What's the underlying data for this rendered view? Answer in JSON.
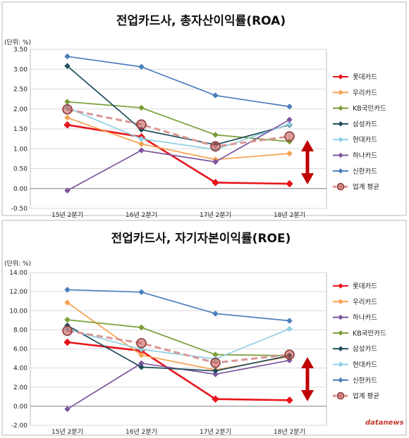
{
  "chart_data": [
    {
      "type": "line",
      "title": "전업카드사, 총자산이익률(ROA)",
      "unit_label": "(단위: %)",
      "categories": [
        "15년 2분기",
        "16년 2분기",
        "17년 2분기",
        "18년 2분기"
      ],
      "ylim": [
        -0.5,
        3.5
      ],
      "yticks": [
        "3.50",
        "3.00",
        "2.50",
        "2.00",
        "1.50",
        "1.00",
        "0.50",
        "0.00",
        "-0.50"
      ],
      "ytick_values": [
        3.5,
        3.0,
        2.5,
        2.0,
        1.5,
        1.0,
        0.5,
        0.0,
        -0.5
      ],
      "grid": true,
      "legend_position": "right",
      "series": [
        {
          "name": "롯데카드",
          "color": "#e8141b",
          "marker": "diamond",
          "values": [
            1.6,
            1.3,
            0.15,
            0.12
          ]
        },
        {
          "name": "우리카드",
          "color": "#f7a150",
          "marker": "diamond",
          "values": [
            1.78,
            1.12,
            0.73,
            0.88
          ]
        },
        {
          "name": "KB국민카드",
          "color": "#7a9e36",
          "marker": "diamond",
          "values": [
            2.18,
            2.03,
            1.35,
            1.18
          ]
        },
        {
          "name": "삼성카드",
          "color": "#1e4d5b",
          "marker": "diamond",
          "values": [
            3.08,
            1.48,
            1.1,
            1.6
          ]
        },
        {
          "name": "현대카드",
          "color": "#8fd0e3",
          "marker": "diamond",
          "values": [
            2.03,
            1.25,
            0.98,
            1.62
          ]
        },
        {
          "name": "하나카드",
          "color": "#7d569f",
          "marker": "diamond",
          "values": [
            -0.05,
            0.96,
            0.67,
            1.73
          ]
        },
        {
          "name": "신한카드",
          "color": "#4a7ebb",
          "marker": "diamond",
          "values": [
            3.32,
            3.06,
            2.34,
            2.06
          ]
        },
        {
          "name": "업계 평균",
          "color": "#d99694",
          "marker": "circle",
          "dashed": true,
          "values": [
            1.99,
            1.61,
            1.06,
            1.31
          ]
        }
      ]
    },
    {
      "type": "line",
      "title": "전업카드사, 자기자본이익률(ROE)",
      "unit_label": "(단위: %)",
      "categories": [
        "15년 2분기",
        "16년 2분기",
        "17년 2분기",
        "18년 2분기"
      ],
      "ylim": [
        -2.0,
        14.0
      ],
      "yticks": [
        "14.00",
        "12.00",
        "10.00",
        "8.00",
        "6.00",
        "4.00",
        "2.00",
        "0.00",
        "-2.00"
      ],
      "ytick_values": [
        14,
        12,
        10,
        8,
        6,
        4,
        2,
        0,
        -2
      ],
      "grid": true,
      "legend_position": "right",
      "series": [
        {
          "name": "롯데카드",
          "color": "#e8141b",
          "marker": "diamond",
          "values": [
            6.7,
            5.8,
            0.75,
            0.63
          ]
        },
        {
          "name": "우리카드",
          "color": "#f7a150",
          "marker": "diamond",
          "values": [
            10.85,
            5.35,
            3.8,
            5.2
          ]
        },
        {
          "name": "하나카드",
          "color": "#7d569f",
          "marker": "diamond",
          "values": [
            -0.3,
            4.5,
            3.35,
            4.8
          ]
        },
        {
          "name": "KB국민카드",
          "color": "#7a9e36",
          "marker": "diamond",
          "values": [
            9.05,
            8.25,
            5.4,
            5.3
          ]
        },
        {
          "name": "삼성카드",
          "color": "#1e4d5b",
          "marker": "diamond",
          "values": [
            8.45,
            4.1,
            3.7,
            5.3
          ]
        },
        {
          "name": "현대카드",
          "color": "#8fd0e3",
          "marker": "diamond",
          "values": [
            8.05,
            5.95,
            4.95,
            8.1
          ]
        },
        {
          "name": "신한카드",
          "color": "#4a7ebb",
          "marker": "diamond",
          "values": [
            12.2,
            11.95,
            9.7,
            8.95
          ]
        },
        {
          "name": "업계 평균",
          "color": "#d99694",
          "marker": "circle",
          "dashed": true,
          "values": [
            7.9,
            6.6,
            4.55,
            5.4
          ]
        }
      ]
    }
  ],
  "annotation": {
    "arrow_color": "#c00000"
  },
  "watermark": {
    "text": "datanews",
    "color": "#c0392b"
  }
}
